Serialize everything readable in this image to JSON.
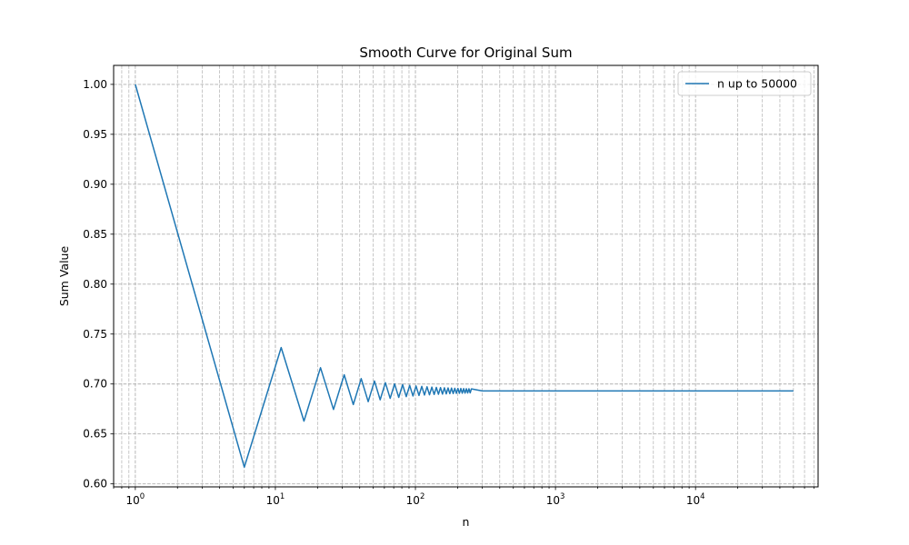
{
  "chart_data": {
    "type": "line",
    "title": "Smooth Curve for Original Sum",
    "xlabel": "n",
    "ylabel": "Sum Value",
    "xscale": "log",
    "xlim": [
      0.7,
      75000
    ],
    "ylim": [
      0.597,
      1.019
    ],
    "grid": true,
    "grid_style": "dashed",
    "legend_position": "top-right",
    "x_ticks": [
      1,
      10,
      100,
      1000,
      10000
    ],
    "x_tick_labels": [
      "10",
      "10",
      "10",
      "10",
      "10"
    ],
    "x_tick_exponents": [
      "0",
      "1",
      "2",
      "3",
      "4"
    ],
    "y_ticks": [
      0.6,
      0.65,
      0.7,
      0.75,
      0.8,
      0.85,
      0.9,
      0.95,
      1.0
    ],
    "y_tick_labels": [
      "0.60",
      "0.65",
      "0.70",
      "0.75",
      "0.80",
      "0.85",
      "0.90",
      "0.95",
      "1.00"
    ],
    "series": [
      {
        "name": "n up to 50000",
        "color": "#1f77b4",
        "x": [
          1,
          6,
          11,
          16,
          21,
          26,
          31,
          36,
          41,
          46,
          51,
          56,
          61,
          66,
          71,
          76,
          81,
          86,
          91,
          96,
          101,
          106,
          111,
          116,
          121,
          126,
          131,
          136,
          141,
          146,
          151,
          156,
          161,
          166,
          171,
          176,
          181,
          186,
          191,
          196,
          201,
          206,
          211,
          216,
          221,
          226,
          231,
          236,
          241,
          246,
          251,
          300,
          500,
          1000,
          2000,
          4500,
          10000,
          20000,
          50000
        ],
        "y": [
          1.0,
          0.6167,
          0.7365,
          0.6628,
          0.7163,
          0.6745,
          0.7092,
          0.6794,
          0.7054,
          0.6823,
          0.703,
          0.6842,
          0.7013,
          0.6856,
          0.7001,
          0.6866,
          0.6993,
          0.6874,
          0.6986,
          0.688,
          0.698,
          0.6885,
          0.6976,
          0.6889,
          0.6972,
          0.6892,
          0.6969,
          0.6895,
          0.6966,
          0.6897,
          0.6964,
          0.6899,
          0.6962,
          0.6901,
          0.696,
          0.6903,
          0.6959,
          0.6904,
          0.6957,
          0.6906,
          0.6956,
          0.6907,
          0.6955,
          0.6908,
          0.6954,
          0.6909,
          0.6953,
          0.691,
          0.6952,
          0.6911,
          0.6951,
          0.6931,
          0.6931,
          0.6931,
          0.6931,
          0.6931,
          0.6931,
          0.6931,
          0.6931
        ]
      }
    ]
  }
}
